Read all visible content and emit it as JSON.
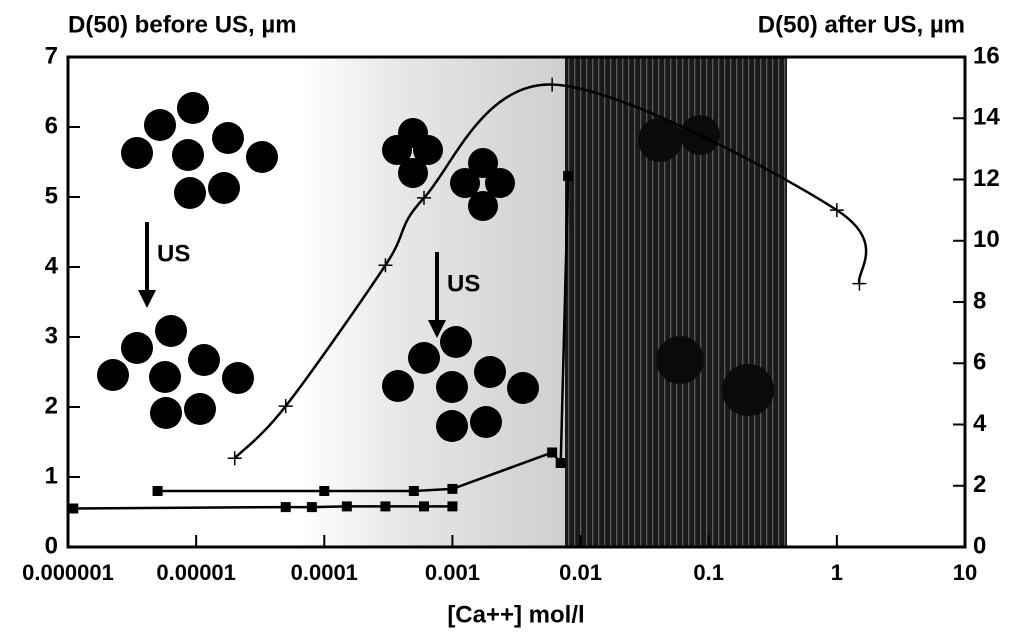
{
  "chart_data": {
    "type": "line",
    "y_label": "D(50) before US, µm",
    "y2_label": "D(50) after US, µm",
    "x_label": "[Ca++] mol/l",
    "annotations": [
      "US",
      "US"
    ],
    "log_x": true,
    "xlim": [
      1e-06,
      10
    ],
    "xticks": [
      1e-06,
      1e-05,
      0.0001,
      0.001,
      0.01,
      0.1,
      1,
      10
    ],
    "ylim": [
      0,
      7
    ],
    "yticks": [
      0,
      1,
      2,
      3,
      4,
      5,
      6,
      7
    ],
    "y2lim": [
      0,
      16
    ],
    "y2ticks": [
      0,
      2,
      4,
      6,
      8,
      10,
      12,
      14,
      16
    ],
    "series": [
      {
        "color": "#000000",
        "marker": "square",
        "axis": "y",
        "x": [
          5e-06,
          0.0001,
          0.0005,
          0.001,
          0.006,
          0.007,
          0.008
        ],
        "values": [
          0.8,
          0.8,
          0.8,
          0.83,
          1.35,
          1.2,
          5.3
        ]
      },
      {
        "color": "#000000",
        "marker": "square",
        "axis": "y",
        "x": [
          1.1e-06,
          5e-05,
          8e-05,
          0.00015,
          0.0003,
          0.0006,
          0.001
        ],
        "values": [
          0.55,
          0.57,
          0.57,
          0.58,
          0.58,
          0.58,
          0.58
        ]
      },
      {
        "color": "#000000",
        "marker": "plus",
        "axis": "y2",
        "x": [
          2e-05,
          5e-05,
          0.0003,
          0.0006,
          0.006,
          1,
          1.5
        ],
        "values": [
          2.9,
          4.6,
          9.2,
          11.4,
          15.1,
          11.0,
          8.6
        ]
      }
    ]
  }
}
